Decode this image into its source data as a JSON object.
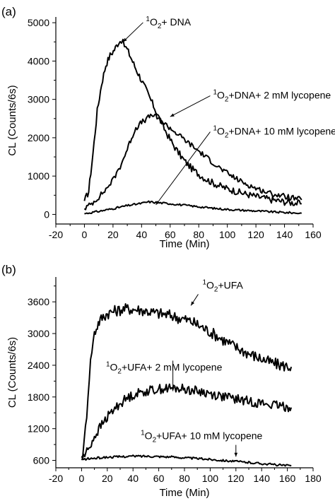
{
  "chart_data": [
    {
      "panel_label": "(a)",
      "type": "line",
      "xlabel": "Time (Min)",
      "ylabel": "CL (Counts/6s)",
      "xlim": [
        -20,
        160
      ],
      "ylim": [
        -250,
        5150
      ],
      "xticks": [
        -20,
        0,
        20,
        40,
        60,
        80,
        100,
        120,
        140,
        160
      ],
      "yticks": [
        0,
        1000,
        2000,
        3000,
        4000,
        5000
      ],
      "annotations": [
        {
          "sup": "1",
          "text": "O",
          "sub": "2",
          "rest": "+ DNA",
          "point": [
            27,
            4500
          ],
          "text_at": [
            43,
            4930
          ]
        },
        {
          "sup": "1",
          "text": "O",
          "sub": "2",
          "rest": "+DNA+ 2 mM lycopene",
          "point": [
            60,
            2550
          ],
          "text_at": [
            90,
            3020
          ]
        },
        {
          "sup": "1",
          "text": "O",
          "sub": "2",
          "rest": "+DNA+ 10 mM lycopene",
          "point": [
            50,
            250
          ],
          "text_at": [
            90,
            2080
          ]
        }
      ],
      "series": [
        {
          "points": [
            [
              0,
              350
            ],
            [
              3,
              600
            ],
            [
              6,
              1600
            ],
            [
              9,
              2700
            ],
            [
              12,
              3400
            ],
            [
              15,
              3900
            ],
            [
              18,
              4150
            ],
            [
              21,
              4300
            ],
            [
              24,
              4500
            ],
            [
              26,
              4550
            ],
            [
              28,
              4400
            ],
            [
              30,
              4300
            ],
            [
              33,
              4050
            ],
            [
              36,
              3800
            ],
            [
              40,
              3500
            ],
            [
              45,
              3100
            ],
            [
              50,
              2700
            ],
            [
              55,
              2300
            ],
            [
              60,
              1950
            ],
            [
              65,
              1650
            ],
            [
              70,
              1400
            ],
            [
              75,
              1200
            ],
            [
              80,
              1050
            ],
            [
              85,
              920
            ],
            [
              90,
              820
            ],
            [
              95,
              740
            ],
            [
              100,
              670
            ],
            [
              110,
              560
            ],
            [
              120,
              470
            ],
            [
              130,
              390
            ],
            [
              140,
              330
            ],
            [
              152,
              280
            ]
          ]
        },
        {
          "points": [
            [
              0,
              150
            ],
            [
              5,
              280
            ],
            [
              10,
              450
            ],
            [
              15,
              650
            ],
            [
              20,
              900
            ],
            [
              25,
              1250
            ],
            [
              30,
              1700
            ],
            [
              33,
              2000
            ],
            [
              36,
              2250
            ],
            [
              40,
              2400
            ],
            [
              44,
              2500
            ],
            [
              47,
              2600
            ],
            [
              50,
              2550
            ],
            [
              55,
              2400
            ],
            [
              60,
              2250
            ],
            [
              65,
              2100
            ],
            [
              70,
              1950
            ],
            [
              75,
              1800
            ],
            [
              80,
              1650
            ],
            [
              85,
              1500
            ],
            [
              90,
              1350
            ],
            [
              95,
              1200
            ],
            [
              100,
              1070
            ],
            [
              110,
              850
            ],
            [
              120,
              680
            ],
            [
              130,
              550
            ],
            [
              140,
              470
            ],
            [
              152,
              380
            ]
          ]
        },
        {
          "points": [
            [
              0,
              20
            ],
            [
              10,
              80
            ],
            [
              20,
              150
            ],
            [
              30,
              230
            ],
            [
              40,
              290
            ],
            [
              45,
              330
            ],
            [
              50,
              310
            ],
            [
              60,
              280
            ],
            [
              70,
              240
            ],
            [
              80,
              200
            ],
            [
              90,
              160
            ],
            [
              100,
              130
            ],
            [
              110,
              110
            ],
            [
              120,
              90
            ],
            [
              130,
              70
            ],
            [
              140,
              50
            ],
            [
              152,
              30
            ]
          ]
        }
      ]
    },
    {
      "panel_label": "(b)",
      "type": "line",
      "xlabel": "Time (Min)",
      "ylabel": "CL (Counts/6s)",
      "xlim": [
        -20,
        180
      ],
      "ylim": [
        460,
        4070
      ],
      "xticks": [
        -20,
        0,
        20,
        40,
        60,
        80,
        100,
        120,
        140,
        160,
        180
      ],
      "yticks": [
        600,
        1200,
        1800,
        2400,
        3000,
        3600
      ],
      "annotations": [
        {
          "sup": "1",
          "text": "O",
          "sub": "2",
          "rest": "+UFA",
          "point": [
            85,
            3530
          ],
          "text_at": [
            94,
            3850
          ]
        },
        {
          "sup": "1",
          "text": "O",
          "sub": "2",
          "rest": "+UFA+ 2 mM lycopene",
          "point": [
            71,
            1910
          ],
          "text_at": [
            19,
            2300
          ]
        },
        {
          "sup": "1",
          "text": "O",
          "sub": "2",
          "rest": "+UFA+ 10 mM lycopene",
          "point": [
            120,
            670
          ],
          "text_at": [
            46,
            1000
          ]
        }
      ],
      "series": [
        {
          "points": [
            [
              0,
              650
            ],
            [
              2,
              900
            ],
            [
              4,
              1500
            ],
            [
              6,
              2200
            ],
            [
              8,
              2700
            ],
            [
              10,
              3000
            ],
            [
              13,
              3200
            ],
            [
              16,
              3300
            ],
            [
              20,
              3380
            ],
            [
              25,
              3420
            ],
            [
              30,
              3450
            ],
            [
              35,
              3470
            ],
            [
              40,
              3460
            ],
            [
              45,
              3450
            ],
            [
              50,
              3430
            ],
            [
              55,
              3400
            ],
            [
              60,
              3380
            ],
            [
              65,
              3360
            ],
            [
              70,
              3340
            ],
            [
              75,
              3300
            ],
            [
              80,
              3270
            ],
            [
              85,
              3230
            ],
            [
              90,
              3170
            ],
            [
              95,
              3100
            ],
            [
              100,
              3030
            ],
            [
              105,
              2960
            ],
            [
              110,
              2880
            ],
            [
              115,
              2810
            ],
            [
              120,
              2740
            ],
            [
              125,
              2680
            ],
            [
              130,
              2620
            ],
            [
              135,
              2570
            ],
            [
              140,
              2520
            ],
            [
              145,
              2470
            ],
            [
              150,
              2430
            ],
            [
              155,
              2400
            ],
            [
              160,
              2380
            ],
            [
              163,
              2370
            ]
          ]
        },
        {
          "points": [
            [
              0,
              620
            ],
            [
              5,
              800
            ],
            [
              10,
              1050
            ],
            [
              15,
              1250
            ],
            [
              20,
              1420
            ],
            [
              25,
              1560
            ],
            [
              30,
              1680
            ],
            [
              35,
              1770
            ],
            [
              40,
              1840
            ],
            [
              45,
              1880
            ],
            [
              50,
              1910
            ],
            [
              55,
              1930
            ],
            [
              60,
              1950
            ],
            [
              65,
              1960
            ],
            [
              70,
              1965
            ],
            [
              75,
              1960
            ],
            [
              80,
              1950
            ],
            [
              85,
              1930
            ],
            [
              90,
              1910
            ],
            [
              95,
              1890
            ],
            [
              100,
              1860
            ],
            [
              110,
              1810
            ],
            [
              120,
              1760
            ],
            [
              130,
              1720
            ],
            [
              140,
              1680
            ],
            [
              150,
              1640
            ],
            [
              160,
              1610
            ],
            [
              163,
              1600
            ]
          ]
        },
        {
          "points": [
            [
              0,
              610
            ],
            [
              5,
              630
            ],
            [
              10,
              640
            ],
            [
              20,
              660
            ],
            [
              30,
              670
            ],
            [
              40,
              680
            ],
            [
              50,
              680
            ],
            [
              60,
              675
            ],
            [
              70,
              665
            ],
            [
              80,
              650
            ],
            [
              90,
              635
            ],
            [
              100,
              620
            ],
            [
              110,
              600
            ],
            [
              120,
              580
            ],
            [
              130,
              560
            ],
            [
              140,
              540
            ],
            [
              150,
              520
            ],
            [
              160,
              500
            ],
            [
              163,
              495
            ]
          ]
        }
      ]
    }
  ]
}
